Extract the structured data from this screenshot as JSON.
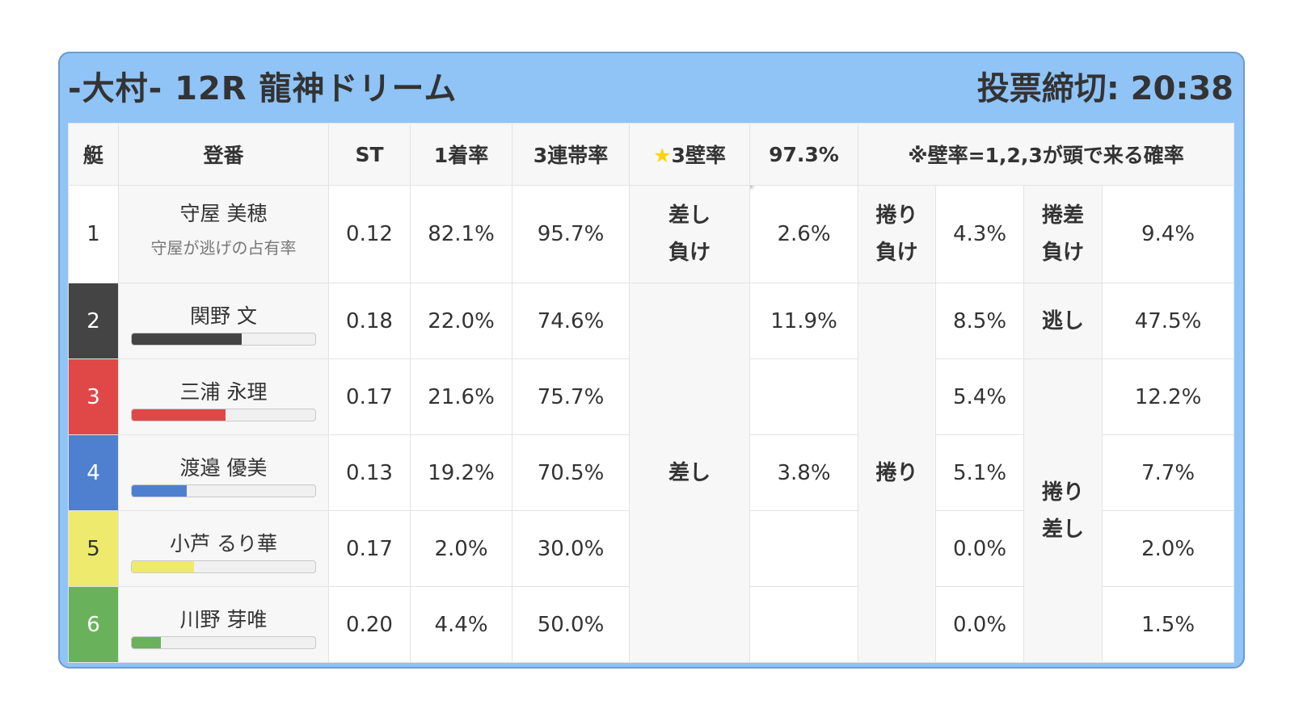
{
  "header": {
    "title": "-大村- 12R 龍神ドリーム",
    "deadline": "投票締切: 20:38"
  },
  "columns": {
    "lane": "艇",
    "name": "登番",
    "st": "ST",
    "win": "1着率",
    "top3": "3連帯率",
    "kabe_star": "★",
    "kabe_label": "3壁率",
    "kabe_value": "97.3%",
    "note": "※壁率=1,2,3が頭で来る確率"
  },
  "rows": [
    {
      "lane": "1",
      "name": "守屋 美穂",
      "note": "守屋が逃げの占有率",
      "st": "0.12",
      "win": "82.1%",
      "top3": "95.7%",
      "lane_color": "#ffffff",
      "lane_text_color": "#333333"
    },
    {
      "lane": "2",
      "name": "関野 文",
      "st": "0.18",
      "win": "22.0%",
      "top3": "74.6%",
      "bar": 0.6,
      "lane_color": "#444444",
      "lane_text_color": "#ffffff"
    },
    {
      "lane": "3",
      "name": "三浦 永理",
      "st": "0.17",
      "win": "21.6%",
      "top3": "75.7%",
      "bar": 0.51,
      "lane_color": "#e04848",
      "lane_text_color": "#ffffff"
    },
    {
      "lane": "4",
      "name": "渡邉 優美",
      "st": "0.13",
      "win": "19.2%",
      "top3": "70.5%",
      "bar": 0.3,
      "lane_color": "#4f80cf",
      "lane_text_color": "#ffffff"
    },
    {
      "lane": "5",
      "name": "小芦 るり華",
      "st": "0.17",
      "win": "2.0%",
      "top3": "30.0%",
      "bar": 0.34,
      "lane_color": "#eeea6e",
      "lane_text_color": "#333333"
    },
    {
      "lane": "6",
      "name": "川野 芽唯",
      "st": "0.20",
      "win": "4.4%",
      "top3": "50.0%",
      "bar": 0.16,
      "lane_color": "#6ab15c",
      "lane_text_color": "#ffffff"
    }
  ],
  "kimarite": {
    "sashi_make_label": "差し\n負け",
    "sashi_make_value": "2.6%",
    "makuri_make_label": "捲り\n負け",
    "makuri_make_value": "4.3%",
    "makurizashi_make_label": "捲差\n負け",
    "makurizashi_make_value": "9.4%",
    "sashi_label": "差し",
    "sashi_values": [
      "11.9%",
      "",
      "3.8%",
      "",
      ""
    ],
    "makuri_label": "捲り",
    "makuri_values": [
      "8.5%",
      "5.4%",
      "5.1%",
      "0.0%",
      "0.0%"
    ],
    "nige_label": "逃し",
    "nige_value": "47.5%",
    "makurizashi_label": "捲り\n差し",
    "makurizashi_values": [
      "12.2%",
      "7.7%",
      "2.0%",
      "1.5%"
    ]
  }
}
